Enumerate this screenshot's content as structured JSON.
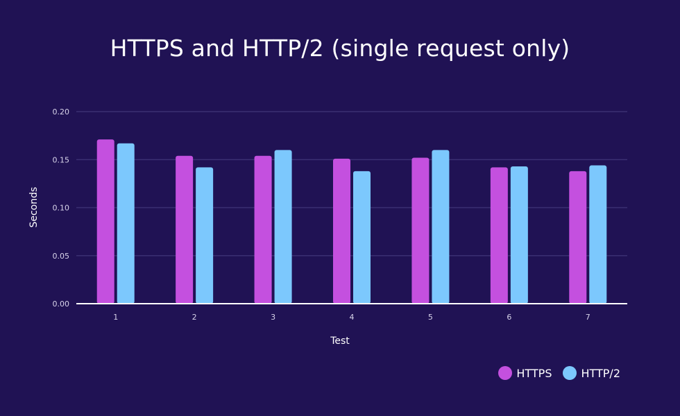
{
  "chart_data": {
    "type": "bar",
    "title": "HTTPS and HTTP/2 (single request only)",
    "xlabel": "Test",
    "ylabel": "Seconds",
    "categories": [
      "1",
      "2",
      "3",
      "4",
      "5",
      "6",
      "7"
    ],
    "ylim": [
      0,
      0.2
    ],
    "yticks": [
      "0.00",
      "0.05",
      "0.10",
      "0.15",
      "0.20"
    ],
    "grid": true,
    "legend_position": "bottom-right",
    "series": [
      {
        "name": "HTTPS",
        "color": "#c450df",
        "values": [
          0.171,
          0.154,
          0.154,
          0.151,
          0.152,
          0.142,
          0.138
        ]
      },
      {
        "name": "HTTP/2",
        "color": "#7cc8fd",
        "values": [
          0.167,
          0.142,
          0.16,
          0.138,
          0.16,
          0.143,
          0.144
        ]
      }
    ]
  },
  "colors": {
    "background": "#201254",
    "gridline": "#3a2f72",
    "axis": "#ffffff"
  }
}
